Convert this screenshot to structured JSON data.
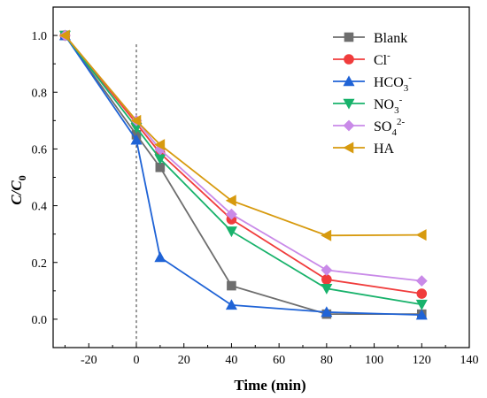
{
  "chart_data": {
    "type": "line",
    "xlabel": "Time (min)",
    "ylabel_main": "C/C",
    "ylabel_sub": "0",
    "xlim": [
      -35,
      140
    ],
    "ylim": [
      -0.1,
      1.1
    ],
    "xticks": [
      -20,
      0,
      20,
      40,
      60,
      80,
      100,
      120,
      140
    ],
    "yticks": [
      0.0,
      0.2,
      0.4,
      0.6,
      0.8,
      1.0
    ],
    "ytick_labels": [
      "0.0",
      "0.2",
      "0.4",
      "0.6",
      "0.8",
      "1.0"
    ],
    "reference_line_x": 0,
    "grid": false,
    "legend_position": "top-right",
    "x": [
      -30,
      0,
      10,
      40,
      80,
      120
    ],
    "series": [
      {
        "name": "Blank",
        "name_main": "Blank",
        "sup": "",
        "sub": "",
        "sup2": "",
        "color": "#6e6e6e",
        "marker": "square",
        "values": [
          1.0,
          0.65,
          0.535,
          0.118,
          0.018,
          0.018
        ]
      },
      {
        "name": "Cl-",
        "name_main": "Cl",
        "sup": "-",
        "sub": "",
        "sup2": "",
        "color": "#f03c3c",
        "marker": "circle",
        "values": [
          1.0,
          0.69,
          0.585,
          0.352,
          0.14,
          0.09
        ]
      },
      {
        "name": "HCO3-",
        "name_main": "HCO",
        "sup": "",
        "sub": "3",
        "sup2": "-",
        "color": "#1f63d6",
        "marker": "triangle-up",
        "values": [
          1.0,
          0.632,
          0.218,
          0.05,
          0.025,
          0.015
        ]
      },
      {
        "name": "NO3-",
        "name_main": "NO",
        "sup": "",
        "sub": "3",
        "sup2": "-",
        "color": "#18b26b",
        "marker": "triangle-down",
        "values": [
          1.0,
          0.675,
          0.565,
          0.31,
          0.108,
          0.052
        ]
      },
      {
        "name": "SO42-",
        "name_main": "SO",
        "sup": "",
        "sub": "4",
        "sup2": "2-",
        "color": "#c98ae8",
        "marker": "diamond",
        "values": [
          1.0,
          0.7,
          0.598,
          0.37,
          0.173,
          0.135
        ]
      },
      {
        "name": "HA",
        "name_main": "HA",
        "sup": "",
        "sub": "",
        "sup2": "",
        "color": "#d79a0e",
        "marker": "triangle-left",
        "values": [
          1.0,
          0.7,
          0.615,
          0.418,
          0.295,
          0.297
        ]
      }
    ]
  }
}
